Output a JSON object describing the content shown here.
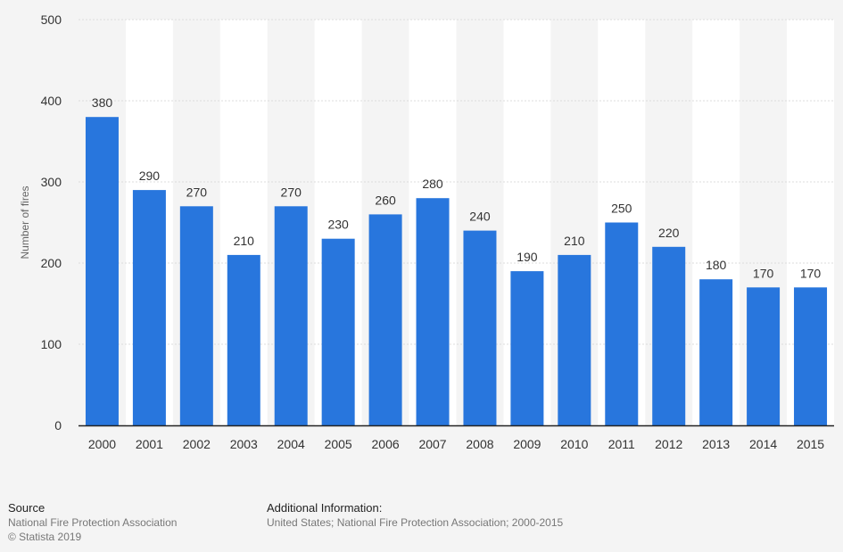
{
  "chart_data": {
    "type": "bar",
    "categories": [
      "2000",
      "2001",
      "2002",
      "2003",
      "2004",
      "2005",
      "2006",
      "2007",
      "2008",
      "2009",
      "2010",
      "2011",
      "2012",
      "2013",
      "2014",
      "2015"
    ],
    "values": [
      380,
      290,
      270,
      210,
      270,
      230,
      260,
      280,
      240,
      190,
      210,
      250,
      220,
      180,
      170,
      170
    ],
    "ylabel": "Number of fires",
    "ylim": [
      0,
      500
    ],
    "yticks": [
      0,
      100,
      200,
      300,
      400,
      500
    ],
    "grid": true,
    "bar_color": "#2876dd",
    "alt_band_color": "#ffffff"
  },
  "footer": {
    "source_heading": "Source",
    "source_line1": "National Fire Protection Association",
    "source_line2": "© Statista 2019",
    "info_heading": "Additional Information:",
    "info_line1": "United States; National Fire Protection Association; 2000-2015"
  }
}
